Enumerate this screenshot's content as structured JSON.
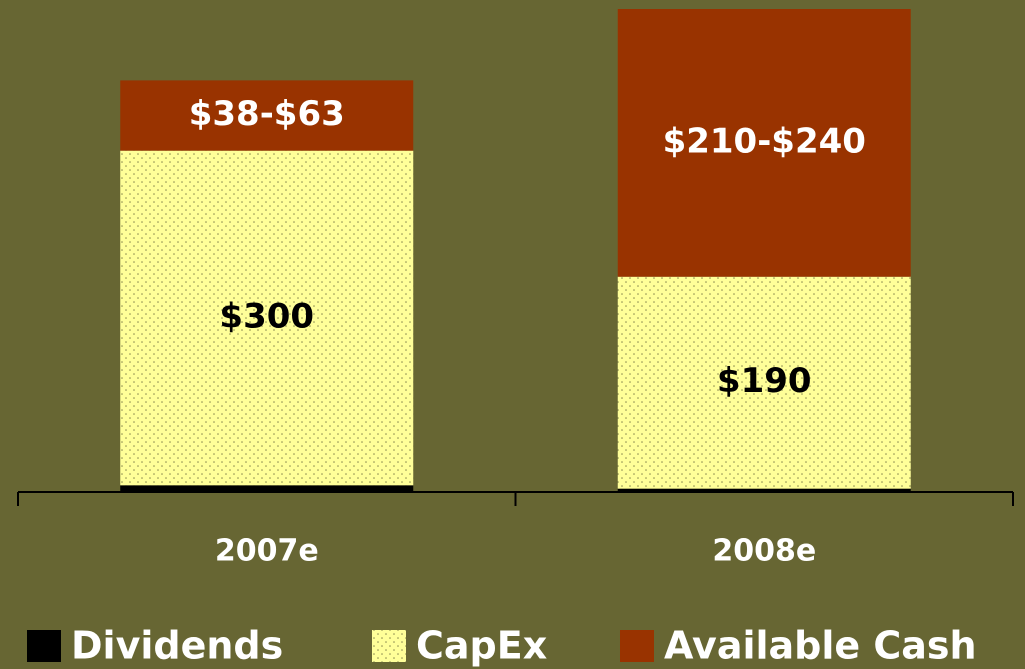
{
  "chart_data": {
    "type": "stacked_bar",
    "categories": [
      "2007e",
      "2008e"
    ],
    "series": [
      {
        "name": "Dividends",
        "color": "#000000",
        "values": [
          6,
          3
        ]
      },
      {
        "name": "CapEx",
        "color": "#ffff99",
        "pattern": "dots",
        "label_color": "#000000",
        "values": [
          300,
          190
        ],
        "value_labels": [
          "$300",
          "$190"
        ]
      },
      {
        "name": "Available Cash",
        "color": "#993300",
        "label_color": "#ffffff",
        "values": [
          63,
          240
        ],
        "value_labels": [
          "$38-$63",
          "$210-$240"
        ]
      }
    ],
    "legend": "bottom"
  }
}
